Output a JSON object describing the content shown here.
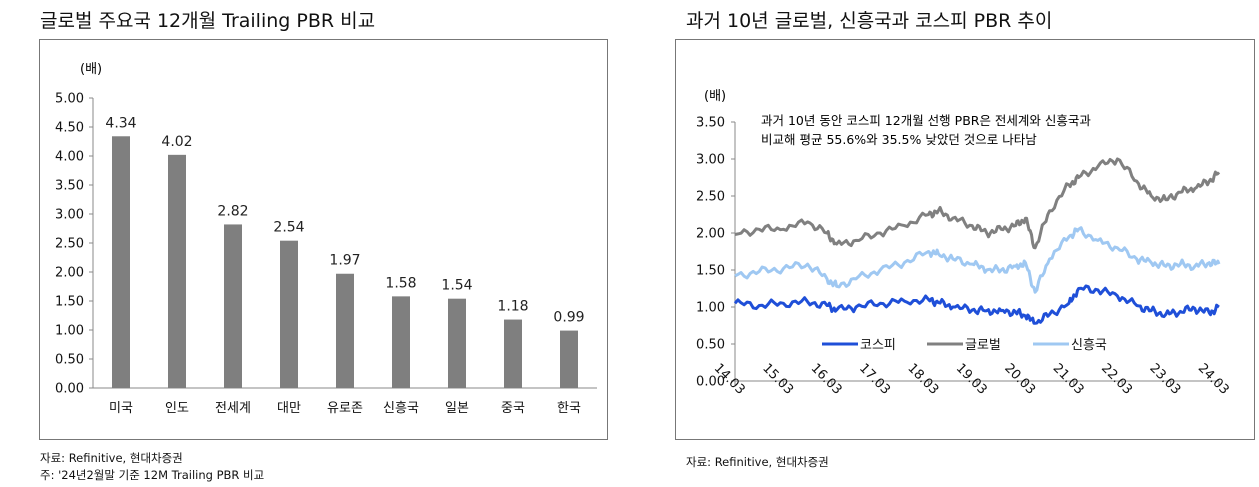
{
  "left": {
    "title": "글로벌 주요국 12개월 Trailing PBR 비교",
    "unit": "(배)",
    "source": "자료: Refinitive, 현대차증권",
    "footnote": "주: '24년2월말 기준 12M Trailing PBR 비교"
  },
  "right": {
    "title": "과거 10년 글로벌, 신흥국과 코스피 PBR 추이",
    "unit": "(배)",
    "annotation_line1": "과거 10년 동안 코스피 12개월 선행 PBR은 전세계와 신흥국과",
    "annotation_line2": "비교해 평균 55.6%와 35.5% 낮았던 것으로 나타남",
    "source": "자료: Refinitive, 현대차증권"
  },
  "chart_data": [
    {
      "type": "bar",
      "categories": [
        "미국",
        "인도",
        "전세계",
        "대만",
        "유로존",
        "신흥국",
        "일본",
        "중국",
        "한국"
      ],
      "values": [
        4.34,
        4.02,
        2.82,
        2.54,
        1.97,
        1.58,
        1.54,
        1.18,
        0.99
      ],
      "data_labels": [
        "4.34",
        "4.02",
        "2.82",
        "2.54",
        "1.97",
        "1.58",
        "1.54",
        "1.18",
        "0.99"
      ],
      "ylabel": "(배)",
      "ylim": [
        0,
        5
      ],
      "yticks": [
        "0.00",
        "0.50",
        "1.00",
        "1.50",
        "2.00",
        "2.50",
        "3.00",
        "3.50",
        "4.00",
        "4.50",
        "5.00"
      ],
      "bar_color": "#7f7f7f",
      "grid": false
    },
    {
      "type": "line",
      "ylabel": "(배)",
      "ylim": [
        0,
        3.5
      ],
      "xlim": [
        2014.0,
        2024.0
      ],
      "xticks": [
        "14.03",
        "15.03",
        "16.03",
        "17.03",
        "18.03",
        "19.03",
        "20.03",
        "21.03",
        "22.03",
        "23.03",
        "24.03"
      ],
      "yticks": [
        "0.00",
        "0.50",
        "1.00",
        "1.50",
        "2.00",
        "2.50",
        "3.00",
        "3.50"
      ],
      "legend_position": "bottom-center",
      "grid": false,
      "x": [
        2014.0,
        2014.5,
        2015.0,
        2015.5,
        2015.9,
        2016.1,
        2016.5,
        2017.0,
        2017.5,
        2018.0,
        2018.2,
        2018.5,
        2018.9,
        2019.2,
        2019.5,
        2019.8,
        2020.0,
        2020.2,
        2020.5,
        2020.9,
        2021.1,
        2021.5,
        2021.9,
        2022.3,
        2022.6,
        2022.9,
        2023.2,
        2023.5,
        2023.8,
        2024.0
      ],
      "series": [
        {
          "name": "코스피",
          "color": "#1f4fd8",
          "values": [
            1.05,
            1.02,
            1.05,
            1.07,
            1.02,
            0.96,
            1.0,
            1.05,
            1.08,
            1.1,
            1.06,
            1.0,
            0.96,
            0.95,
            0.95,
            0.93,
            0.88,
            0.78,
            0.9,
            1.05,
            1.25,
            1.23,
            1.15,
            1.02,
            0.95,
            0.9,
            0.94,
            0.98,
            0.92,
            1.0
          ]
        },
        {
          "name": "글로벌",
          "color": "#808080",
          "values": [
            1.98,
            2.05,
            2.05,
            2.15,
            2.0,
            1.85,
            1.9,
            2.0,
            2.1,
            2.25,
            2.3,
            2.2,
            2.1,
            2.0,
            2.05,
            2.1,
            2.2,
            1.8,
            2.3,
            2.65,
            2.75,
            2.9,
            3.0,
            2.7,
            2.5,
            2.45,
            2.55,
            2.6,
            2.7,
            2.82
          ]
        },
        {
          "name": "신흥국",
          "color": "#9fc8f2",
          "values": [
            1.42,
            1.48,
            1.52,
            1.58,
            1.38,
            1.28,
            1.38,
            1.5,
            1.6,
            1.75,
            1.72,
            1.65,
            1.58,
            1.5,
            1.5,
            1.55,
            1.6,
            1.2,
            1.65,
            1.95,
            2.05,
            1.9,
            1.8,
            1.65,
            1.6,
            1.55,
            1.58,
            1.55,
            1.6,
            1.58
          ]
        }
      ]
    }
  ]
}
